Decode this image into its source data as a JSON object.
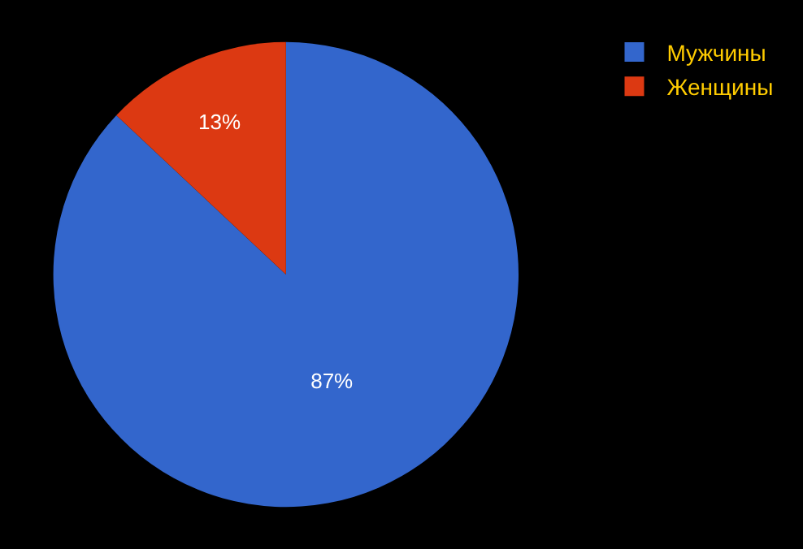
{
  "chart_data": {
    "type": "pie",
    "categories": [
      "Мужчины",
      "Женщины"
    ],
    "values": [
      87,
      13
    ],
    "colors": [
      "#3366cc",
      "#dc3912"
    ],
    "value_labels": [
      "87%",
      "13%"
    ],
    "legend": "top right"
  }
}
